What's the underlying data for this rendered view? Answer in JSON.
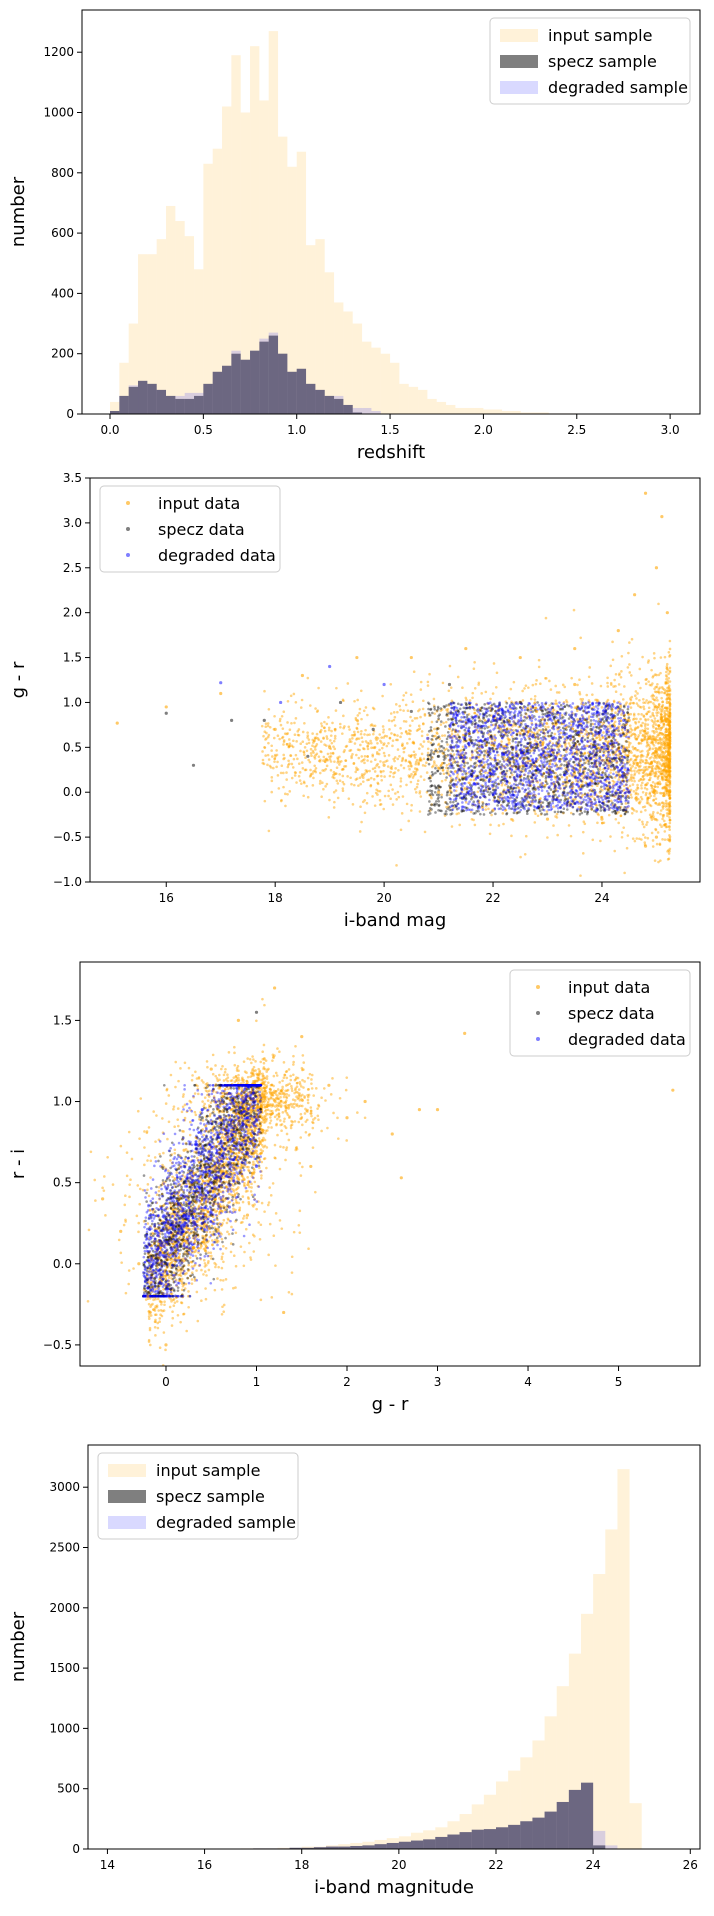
{
  "chart_data": [
    {
      "type": "histogram",
      "xlabel": "redshift",
      "ylabel": "number",
      "xlim": [
        -0.15,
        3.16
      ],
      "ylim": [
        0,
        1340
      ],
      "xticks": [
        0.0,
        0.5,
        1.0,
        1.5,
        2.0,
        2.5,
        3.0
      ],
      "xtick_labels": [
        "0.0",
        "0.5",
        "1.0",
        "1.5",
        "2.0",
        "2.5",
        "3.0"
      ],
      "yticks": [
        0,
        200,
        400,
        600,
        800,
        1000,
        1200
      ],
      "ytick_labels": [
        "0",
        "200",
        "400",
        "600",
        "800",
        "1000",
        "1200"
      ],
      "legend_position": "top-right",
      "series": [
        {
          "name": "input sample",
          "color": "#ffa500",
          "alpha": 0.15,
          "bin_start": 0.0,
          "bin_width": 0.05,
          "values": [
            40,
            170,
            300,
            530,
            530,
            580,
            690,
            640,
            590,
            480,
            830,
            880,
            1020,
            1190,
            1000,
            1220,
            1040,
            1270,
            920,
            820,
            870,
            560,
            580,
            470,
            370,
            340,
            300,
            240,
            220,
            200,
            170,
            100,
            90,
            80,
            50,
            40,
            30,
            20,
            20,
            20,
            15,
            15,
            10,
            10,
            5,
            5,
            5,
            2,
            2,
            2
          ]
        },
        {
          "name": "specz sample",
          "color": "#000000",
          "alpha": 0.5,
          "bin_start": 0.0,
          "bin_width": 0.05,
          "values": [
            10,
            60,
            90,
            110,
            100,
            80,
            60,
            50,
            50,
            60,
            100,
            140,
            160,
            200,
            180,
            210,
            240,
            260,
            200,
            140,
            150,
            100,
            80,
            60,
            50,
            30,
            5,
            0,
            0,
            0,
            0,
            0,
            0,
            0,
            0,
            0,
            0,
            0,
            0,
            0,
            0,
            0,
            0,
            0,
            0,
            0,
            0,
            0,
            0,
            0
          ]
        },
        {
          "name": "degraded sample",
          "color": "#0000ff",
          "alpha": 0.15,
          "bin_start": 0.0,
          "bin_width": 0.05,
          "values": [
            10,
            60,
            95,
            110,
            100,
            80,
            60,
            60,
            70,
            70,
            100,
            140,
            160,
            210,
            180,
            210,
            250,
            270,
            200,
            140,
            150,
            100,
            80,
            60,
            60,
            30,
            20,
            20,
            10,
            0,
            0,
            0,
            0,
            0,
            0,
            0,
            0,
            0,
            0,
            0,
            0,
            0,
            0,
            0,
            0,
            0,
            0,
            0,
            0,
            0
          ]
        }
      ]
    },
    {
      "type": "scatter",
      "xlabel": "i-band mag",
      "ylabel": "g - r",
      "xlim": [
        14.6,
        25.8
      ],
      "ylim": [
        -1.0,
        3.5
      ],
      "xticks": [
        16,
        18,
        20,
        22,
        24
      ],
      "xtick_labels": [
        "16",
        "18",
        "20",
        "22",
        "24"
      ],
      "yticks": [
        -1.0,
        -0.5,
        0.0,
        0.5,
        1.0,
        1.5,
        2.0,
        2.5,
        3.0,
        3.5
      ],
      "ytick_labels": [
        "−1.0",
        "−0.5",
        "0.0",
        "0.5",
        "1.0",
        "1.5",
        "2.0",
        "2.5",
        "3.0",
        "3.5"
      ],
      "legend_position": "top-left",
      "series": [
        {
          "name": "input data",
          "color": "#ffa500",
          "alpha": 0.6,
          "points": [
            [
              15.1,
              0.77
            ],
            [
              16.0,
              0.95
            ],
            [
              17.0,
              1.1
            ],
            [
              18.5,
              1.3
            ],
            [
              19.5,
              1.5
            ],
            [
              20.5,
              1.5
            ],
            [
              21.5,
              1.6
            ],
            [
              22.5,
              1.5
            ],
            [
              23.5,
              1.6
            ],
            [
              24.3,
              1.8
            ],
            [
              24.6,
              2.2
            ],
            [
              24.8,
              3.33
            ],
            [
              25.1,
              3.07
            ],
            [
              25.0,
              2.5
            ],
            [
              25.2,
              2.0
            ],
            [
              25.2,
              1.0
            ],
            [
              25.2,
              0.0
            ],
            [
              25.0,
              -0.5
            ],
            [
              24.8,
              -0.6
            ],
            [
              24.0,
              -0.3
            ],
            [
              23.0,
              -0.3
            ],
            [
              22.0,
              -0.2
            ],
            [
              21.0,
              0.0
            ],
            [
              20.0,
              0.3
            ],
            [
              19.0,
              0.5
            ],
            [
              18.0,
              0.7
            ],
            [
              23.5,
              1.2
            ],
            [
              24.5,
              0.8
            ],
            [
              24.9,
              0.2
            ],
            [
              22.8,
              0.9
            ]
          ]
        },
        {
          "name": "specz data",
          "color": "#000000",
          "alpha": 0.5,
          "points": [
            [
              16.0,
              0.88
            ],
            [
              16.5,
              0.3
            ],
            [
              17.2,
              0.8
            ],
            [
              17.8,
              0.8
            ],
            [
              18.6,
              0.4
            ],
            [
              19.2,
              1.0
            ],
            [
              19.8,
              0.7
            ],
            [
              20.5,
              0.9
            ],
            [
              21.0,
              0.4
            ],
            [
              21.6,
              0.2
            ],
            [
              22.2,
              -0.1
            ],
            [
              22.8,
              0.5
            ],
            [
              23.3,
              0.0
            ],
            [
              23.8,
              0.7
            ],
            [
              24.2,
              0.3
            ],
            [
              24.4,
              -0.2
            ],
            [
              21.2,
              1.2
            ],
            [
              22.5,
              1.0
            ]
          ]
        },
        {
          "name": "degraded data",
          "color": "#0000ff",
          "alpha": 0.5,
          "points": [
            [
              17.0,
              1.22
            ],
            [
              18.1,
              1.0
            ],
            [
              19.0,
              1.4
            ],
            [
              20.0,
              1.2
            ],
            [
              20.8,
              0.6
            ],
            [
              21.5,
              0.5
            ],
            [
              22.0,
              0.8
            ],
            [
              22.6,
              0.3
            ],
            [
              23.1,
              0.6
            ],
            [
              23.6,
              0.2
            ],
            [
              24.0,
              0.5
            ],
            [
              24.4,
              0.8
            ],
            [
              24.5,
              0.0
            ],
            [
              23.9,
              -0.2
            ],
            [
              22.4,
              -0.2
            ]
          ]
        }
      ]
    },
    {
      "type": "scatter",
      "xlabel": "g - r",
      "ylabel": "r - i",
      "xlim": [
        -0.95,
        5.9
      ],
      "ylim": [
        -0.63,
        1.86
      ],
      "xticks": [
        0,
        1,
        2,
        3,
        4,
        5
      ],
      "xtick_labels": [
        "0",
        "1",
        "2",
        "3",
        "4",
        "5"
      ],
      "yticks": [
        -0.5,
        0.0,
        0.5,
        1.0,
        1.5
      ],
      "ytick_labels": [
        "−0.5",
        "0.0",
        "0.5",
        "1.0",
        "1.5"
      ],
      "legend_position": "top-right",
      "series": [
        {
          "name": "input data",
          "color": "#ffa500",
          "alpha": 0.6,
          "points": [
            [
              -0.7,
              0.4
            ],
            [
              -0.5,
              0.2
            ],
            [
              -0.3,
              0.0
            ],
            [
              -0.2,
              -0.2
            ],
            [
              0.0,
              -0.5
            ],
            [
              0.2,
              0.7
            ],
            [
              0.5,
              1.2
            ],
            [
              0.8,
              1.5
            ],
            [
              1.2,
              1.7
            ],
            [
              1.5,
              1.4
            ],
            [
              1.8,
              1.1
            ],
            [
              2.0,
              0.9
            ],
            [
              2.2,
              1.0
            ],
            [
              2.5,
              0.8
            ],
            [
              1.6,
              0.6
            ],
            [
              1.3,
              -0.3
            ],
            [
              3.3,
              1.42
            ],
            [
              2.8,
              0.95
            ],
            [
              3.0,
              0.95
            ],
            [
              5.6,
              1.07
            ],
            [
              2.6,
              0.53
            ],
            [
              0.9,
              0.3
            ],
            [
              0.3,
              0.1
            ]
          ]
        },
        {
          "name": "specz data",
          "color": "#000000",
          "alpha": 0.5,
          "points": [
            [
              -0.2,
              -0.18
            ],
            [
              0.0,
              0.0
            ],
            [
              0.2,
              0.5
            ],
            [
              0.4,
              0.9
            ],
            [
              0.6,
              1.1
            ],
            [
              0.9,
              1.0
            ],
            [
              1.0,
              1.55
            ],
            [
              0.8,
              0.5
            ],
            [
              0.5,
              0.3
            ],
            [
              0.1,
              0.2
            ]
          ]
        },
        {
          "name": "degraded data",
          "color": "#0000ff",
          "alpha": 0.5,
          "points": [
            [
              -0.2,
              -0.15
            ],
            [
              0.0,
              0.05
            ],
            [
              0.2,
              0.6
            ],
            [
              0.4,
              0.95
            ],
            [
              0.7,
              1.05
            ],
            [
              0.9,
              0.9
            ],
            [
              1.0,
              0.6
            ],
            [
              0.7,
              0.35
            ],
            [
              0.4,
              0.25
            ],
            [
              0.2,
              0.3
            ]
          ]
        }
      ]
    },
    {
      "type": "histogram",
      "xlabel": "i-band magnitude",
      "ylabel": "number",
      "xlim": [
        13.6,
        26.2
      ],
      "ylim": [
        0,
        3350
      ],
      "xticks": [
        14,
        16,
        18,
        20,
        22,
        24,
        26
      ],
      "xtick_labels": [
        "14",
        "16",
        "18",
        "20",
        "22",
        "24",
        "26"
      ],
      "yticks": [
        0,
        500,
        1000,
        1500,
        2000,
        2500,
        3000
      ],
      "ytick_labels": [
        "0",
        "500",
        "1000",
        "1500",
        "2000",
        "2500",
        "3000"
      ],
      "legend_position": "top-left",
      "series": [
        {
          "name": "input sample",
          "color": "#ffa500",
          "alpha": 0.15,
          "bin_start": 14.0,
          "bin_width": 0.25,
          "values": [
            0,
            0,
            0,
            0,
            0,
            0,
            0,
            0,
            0,
            0,
            0,
            5,
            5,
            5,
            10,
            10,
            20,
            20,
            30,
            40,
            50,
            60,
            75,
            90,
            105,
            135,
            155,
            180,
            230,
            290,
            370,
            450,
            560,
            650,
            760,
            900,
            1100,
            1350,
            1620,
            1950,
            2280,
            2650,
            3150,
            380
          ]
        },
        {
          "name": "specz sample",
          "color": "#000000",
          "alpha": 0.5,
          "bin_start": 14.0,
          "bin_width": 0.25,
          "values": [
            0,
            0,
            0,
            0,
            0,
            0,
            0,
            0,
            0,
            0,
            0,
            0,
            5,
            5,
            5,
            10,
            10,
            15,
            20,
            20,
            25,
            30,
            40,
            50,
            60,
            70,
            80,
            100,
            120,
            140,
            160,
            165,
            180,
            200,
            230,
            260,
            310,
            390,
            490,
            550,
            30,
            0,
            0,
            0
          ]
        },
        {
          "name": "degraded sample",
          "color": "#0000ff",
          "alpha": 0.15,
          "bin_start": 14.0,
          "bin_width": 0.25,
          "values": [
            0,
            0,
            0,
            0,
            0,
            0,
            0,
            0,
            0,
            0,
            0,
            0,
            5,
            5,
            5,
            10,
            10,
            15,
            20,
            20,
            25,
            30,
            40,
            50,
            60,
            70,
            80,
            100,
            120,
            140,
            160,
            165,
            180,
            200,
            230,
            260,
            310,
            390,
            490,
            550,
            150,
            30,
            0,
            0
          ]
        }
      ]
    }
  ]
}
